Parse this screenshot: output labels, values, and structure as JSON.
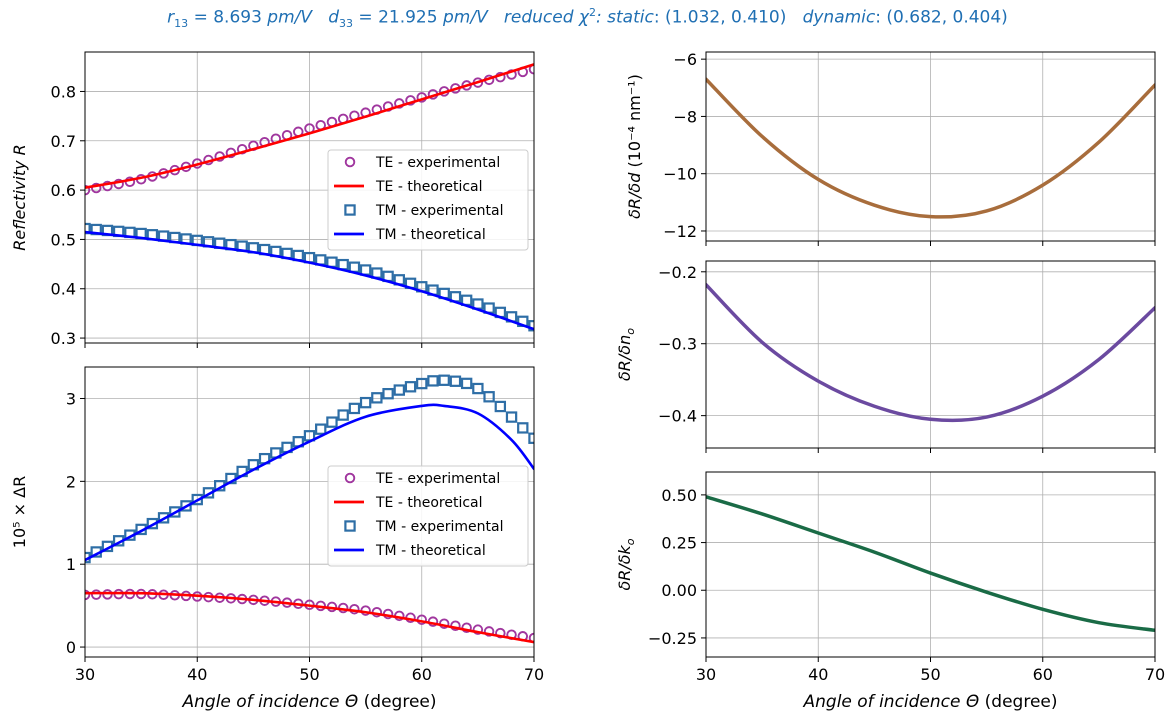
{
  "title": {
    "r13_label": "r",
    "r13_sub": "13",
    "r13_value": " = 8.693 ",
    "r13_unit": "pm/V",
    "d33_label": "d",
    "d33_sub": "33",
    "d33_value": " = 21.925 ",
    "d33_unit": "pm/V",
    "chi_label": "reduced χ",
    "chi_sup": "2",
    "static_label": ": static",
    "static_value": ": (1.032,  0.410)",
    "dynamic_label": "dynamic",
    "dynamic_value": ": (0.682,  0.404)"
  },
  "colors": {
    "te_exp": "#a0369e",
    "te_theo": "#ff0000",
    "tm_exp": "#2e6ea6",
    "tm_theo": "#0000ff",
    "dRdd": "#a86d3c",
    "dRdn": "#6b4aa0",
    "dRdk": "#1a6b46",
    "title": "#1f6fb3"
  },
  "chart_data": [
    {
      "id": "reflectivity",
      "type": "line",
      "xlabel": "",
      "ylabel": "Reflectivity R",
      "xlim": [
        30,
        70
      ],
      "ylim": [
        0.29,
        0.88
      ],
      "xticks": [
        30,
        40,
        50,
        60,
        70
      ],
      "yticks": [
        0.3,
        0.4,
        0.5,
        0.6,
        0.7,
        0.8
      ],
      "ytick_labels": [
        "0.3",
        "0.4",
        "0.5",
        "0.6",
        "0.7",
        "0.8"
      ],
      "grid": true,
      "legend_position": "center-right",
      "legend": [
        "TE - experimental",
        "TE - theoretical",
        "TM - experimental",
        "TM - theoretical"
      ],
      "series": [
        {
          "name": "TE - experimental",
          "style": "circle",
          "color": "te_exp",
          "x": [
            30,
            35,
            40,
            45,
            50,
            55,
            60,
            65,
            70
          ],
          "y": [
            0.6,
            0.622,
            0.654,
            0.69,
            0.725,
            0.757,
            0.788,
            0.818,
            0.845
          ]
        },
        {
          "name": "TE - theoretical",
          "style": "line",
          "color": "te_theo",
          "x": [
            30,
            35,
            40,
            45,
            50,
            55,
            60,
            65,
            70
          ],
          "y": [
            0.605,
            0.625,
            0.652,
            0.683,
            0.715,
            0.749,
            0.784,
            0.819,
            0.855
          ]
        },
        {
          "name": "TM - experimental",
          "style": "square",
          "color": "tm_exp",
          "x": [
            30,
            35,
            40,
            45,
            50,
            55,
            60,
            65,
            70
          ],
          "y": [
            0.522,
            0.512,
            0.498,
            0.483,
            0.463,
            0.438,
            0.404,
            0.369,
            0.325
          ]
        },
        {
          "name": "TM - theoretical",
          "style": "line",
          "color": "tm_theo",
          "x": [
            30,
            35,
            40,
            45,
            50,
            55,
            60,
            65,
            70
          ],
          "y": [
            0.515,
            0.503,
            0.489,
            0.474,
            0.453,
            0.427,
            0.395,
            0.358,
            0.318
          ]
        }
      ]
    },
    {
      "id": "delta_r",
      "type": "line",
      "xlabel": "Angle of incidence Θ (degree)",
      "ylabel": "10⁵ × ΔR",
      "xlim": [
        30,
        70
      ],
      "ylim": [
        -0.12,
        3.38
      ],
      "xticks": [
        30,
        40,
        50,
        60,
        70
      ],
      "yticks": [
        0,
        1,
        2,
        3
      ],
      "ytick_labels": [
        "0",
        "1",
        "2",
        "3"
      ],
      "grid": true,
      "legend_position": "center-right",
      "legend": [
        "TE - experimental",
        "TE - theoretical",
        "TM - experimental",
        "TM - theoretical"
      ],
      "series": [
        {
          "name": "TE - experimental",
          "style": "circle",
          "color": "te_exp",
          "x": [
            30,
            35,
            40,
            45,
            50,
            55,
            60,
            65,
            70
          ],
          "y": [
            0.63,
            0.64,
            0.61,
            0.57,
            0.51,
            0.44,
            0.33,
            0.21,
            0.11
          ]
        },
        {
          "name": "TE - theoretical",
          "style": "line",
          "color": "te_theo",
          "x": [
            30,
            35,
            40,
            45,
            50,
            55,
            60,
            65,
            70
          ],
          "y": [
            0.65,
            0.65,
            0.62,
            0.57,
            0.5,
            0.42,
            0.31,
            0.18,
            0.06
          ]
        },
        {
          "name": "TM - experimental",
          "style": "square",
          "color": "tm_exp",
          "x": [
            30,
            35,
            40,
            45,
            50,
            55,
            60,
            62,
            65,
            70
          ],
          "y": [
            1.08,
            1.42,
            1.78,
            2.2,
            2.55,
            2.95,
            3.18,
            3.22,
            3.12,
            2.52
          ]
        },
        {
          "name": "TM - theoretical",
          "style": "line",
          "color": "tm_theo",
          "x": [
            30,
            35,
            40,
            45,
            50,
            55,
            60,
            62,
            65,
            68,
            70
          ],
          "y": [
            1.05,
            1.4,
            1.77,
            2.14,
            2.48,
            2.78,
            2.91,
            2.91,
            2.82,
            2.5,
            2.15
          ]
        }
      ]
    },
    {
      "id": "dRdd",
      "type": "line",
      "xlabel": "",
      "ylabel": "δR/δd (10⁻⁴ nm⁻¹)",
      "xlim": [
        30,
        70
      ],
      "ylim": [
        -12.35,
        -5.75
      ],
      "xticks": [
        30,
        40,
        50,
        60,
        70
      ],
      "yticks": [
        -12,
        -10,
        -8,
        -6
      ],
      "ytick_labels": [
        "−12",
        "−10",
        "−8",
        "−6"
      ],
      "grid": true,
      "series": [
        {
          "style": "line",
          "color": "dRdd",
          "x": [
            30,
            35,
            40,
            45,
            50,
            55,
            60,
            65,
            70
          ],
          "y": [
            -6.7,
            -8.7,
            -10.2,
            -11.1,
            -11.5,
            -11.3,
            -10.4,
            -8.9,
            -6.9
          ]
        }
      ]
    },
    {
      "id": "dRdn",
      "type": "line",
      "xlabel": "",
      "ylabel": "δR/δn_o",
      "xlim": [
        30,
        70
      ],
      "ylim": [
        -0.445,
        -0.185
      ],
      "xticks": [
        30,
        40,
        50,
        60,
        70
      ],
      "yticks": [
        -0.4,
        -0.3,
        -0.2
      ],
      "ytick_labels": [
        "−0.4",
        "−0.3",
        "−0.2"
      ],
      "grid": true,
      "series": [
        {
          "style": "line",
          "color": "dRdn",
          "x": [
            30,
            35,
            40,
            45,
            50,
            55,
            60,
            65,
            70
          ],
          "y": [
            -0.218,
            -0.298,
            -0.352,
            -0.387,
            -0.405,
            -0.402,
            -0.373,
            -0.322,
            -0.25
          ]
        }
      ]
    },
    {
      "id": "dRdk",
      "type": "line",
      "xlabel": "Angle of incidence Θ (degree)",
      "ylabel": "δR/δk_o",
      "xlim": [
        30,
        70
      ],
      "ylim": [
        -0.35,
        0.62
      ],
      "xticks": [
        30,
        40,
        50,
        60,
        70
      ],
      "yticks": [
        -0.25,
        0.0,
        0.25,
        0.5
      ],
      "ytick_labels": [
        "−0.25",
        "0.00",
        "0.25",
        "0.50"
      ],
      "grid": true,
      "series": [
        {
          "style": "line",
          "color": "dRdk",
          "x": [
            30,
            35,
            40,
            45,
            50,
            55,
            60,
            65,
            70
          ],
          "y": [
            0.49,
            0.4,
            0.3,
            0.2,
            0.09,
            -0.01,
            -0.1,
            -0.17,
            -0.21
          ]
        }
      ]
    }
  ]
}
